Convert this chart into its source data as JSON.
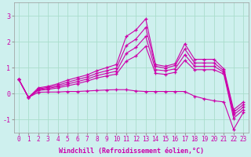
{
  "xlabel": "Windchill (Refroidissement éolien,°C)",
  "background_color": "#cef0ee",
  "grid_color": "#aaddcc",
  "line_color": "#cc00aa",
  "x": [
    0,
    1,
    2,
    3,
    4,
    5,
    6,
    7,
    8,
    9,
    10,
    11,
    12,
    13,
    14,
    15,
    16,
    17,
    18,
    19,
    20,
    21,
    22,
    23
  ],
  "lines": [
    [
      0.55,
      -0.15,
      0.22,
      0.28,
      0.38,
      0.52,
      0.62,
      0.72,
      0.88,
      1.0,
      1.12,
      2.2,
      2.45,
      2.88,
      1.12,
      1.05,
      1.15,
      1.92,
      1.32,
      1.32,
      1.32,
      0.95,
      -0.62,
      -0.32
    ],
    [
      0.55,
      -0.15,
      0.18,
      0.24,
      0.32,
      0.44,
      0.54,
      0.64,
      0.78,
      0.88,
      0.98,
      1.85,
      2.1,
      2.55,
      1.05,
      0.98,
      1.08,
      1.72,
      1.18,
      1.18,
      1.18,
      0.88,
      -0.72,
      -0.42
    ],
    [
      0.55,
      -0.15,
      0.15,
      0.2,
      0.27,
      0.37,
      0.46,
      0.56,
      0.69,
      0.78,
      0.86,
      1.55,
      1.78,
      2.2,
      0.92,
      0.88,
      0.95,
      1.5,
      1.05,
      1.05,
      1.05,
      0.82,
      -0.82,
      -0.52
    ],
    [
      0.55,
      -0.15,
      0.12,
      0.16,
      0.22,
      0.3,
      0.38,
      0.48,
      0.6,
      0.68,
      0.75,
      1.25,
      1.45,
      1.82,
      0.78,
      0.74,
      0.82,
      1.28,
      0.92,
      0.92,
      0.92,
      0.75,
      -0.95,
      -0.62
    ],
    [
      0.55,
      -0.15,
      0.05,
      0.06,
      0.06,
      0.08,
      0.08,
      0.1,
      0.12,
      0.14,
      0.15,
      0.15,
      0.1,
      0.08,
      0.08,
      0.08,
      0.08,
      0.08,
      -0.1,
      -0.2,
      -0.28,
      -0.32,
      -1.38,
      -0.72
    ]
  ],
  "ylim": [
    -1.5,
    3.5
  ],
  "xlim_min": -0.5,
  "xlim_max": 23.5,
  "yticks": [
    -1,
    0,
    1,
    2,
    3
  ],
  "xticks": [
    0,
    1,
    2,
    3,
    4,
    5,
    6,
    7,
    8,
    9,
    10,
    11,
    12,
    13,
    14,
    15,
    16,
    17,
    18,
    19,
    20,
    21,
    22,
    23
  ],
  "tick_fontsize": 5.5,
  "xlabel_fontsize": 6.0
}
